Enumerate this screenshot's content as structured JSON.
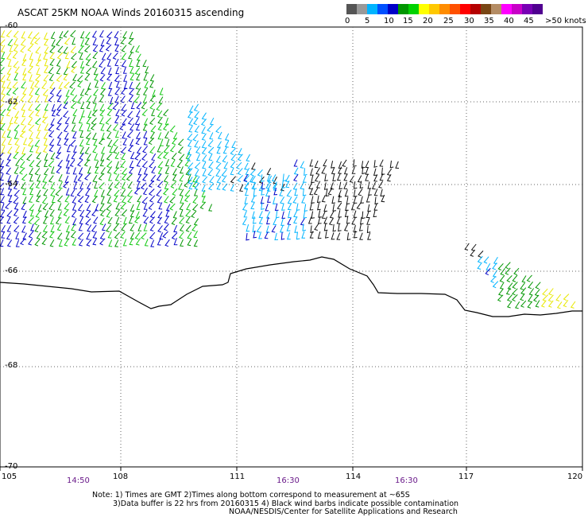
{
  "title": "ASCAT 25KM NOAA Winds 20160315 ascending",
  "legend": {
    "colors": [
      "#555555",
      "#999999",
      "#00b4ff",
      "#0050ff",
      "#0000c8",
      "#009600",
      "#00d200",
      "#ffff00",
      "#ffc800",
      "#ff8c00",
      "#ff5000",
      "#ff0000",
      "#b40000",
      "#784614",
      "#b48c64",
      "#ff00ff",
      "#c800c8",
      "#7800b4",
      "#500090"
    ],
    "labels": [
      "0",
      "5",
      "10",
      "15",
      "20",
      "25",
      "30",
      "35",
      "40",
      "45",
      ">50 knots"
    ]
  },
  "lat_labels": [
    "-60",
    "-62",
    "-64",
    "-66",
    "-68",
    "-70"
  ],
  "lon_labels": [
    "105",
    "108",
    "111",
    "114",
    "117",
    "120"
  ],
  "time_labels": [
    "14:50",
    "16:30",
    "16:30"
  ],
  "notes": {
    "line1": "Note: 1) Times are GMT 2)Times along bottom correspond to measurement at ~65S",
    "line2": "3)Data buffer is 22 hrs from 20160315 4) Black wind barbs indicate possible contamination",
    "line3": "NOAA/NESDIS/Center for Satellite Applications and Research"
  }
}
